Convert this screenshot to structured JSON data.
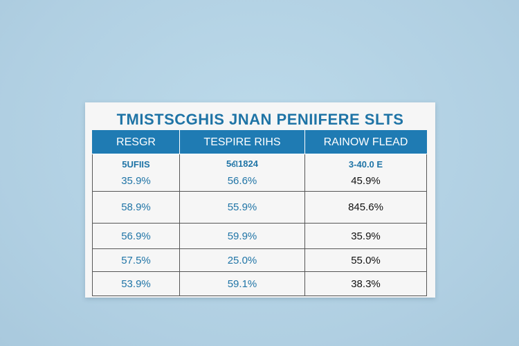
{
  "title": "TMISTSCGHIS  JNAN  PENIIFERE SLTS",
  "headers": [
    "RESGR",
    "TESPIRE RIHS",
    "RAINOW FLEAD"
  ],
  "first_row_labels": [
    "5UFIIS",
    "5ଣ1824",
    "3-40.0 E"
  ],
  "rows": [
    [
      "35.9%",
      "56.6%",
      "45.9%"
    ],
    [
      "58.9%",
      "55.9%",
      "845.6%"
    ],
    [
      "56.9%",
      "59.9%",
      "35.9%"
    ],
    [
      "57.5%",
      "25.0%",
      "55.0%"
    ],
    [
      "53.9%",
      "59.1%",
      "38.3%"
    ]
  ],
  "colors": {
    "background": "#b4d3e5",
    "header": "#1f7bb3",
    "accent_text": "#1f74a6",
    "dark_text": "#111111"
  }
}
